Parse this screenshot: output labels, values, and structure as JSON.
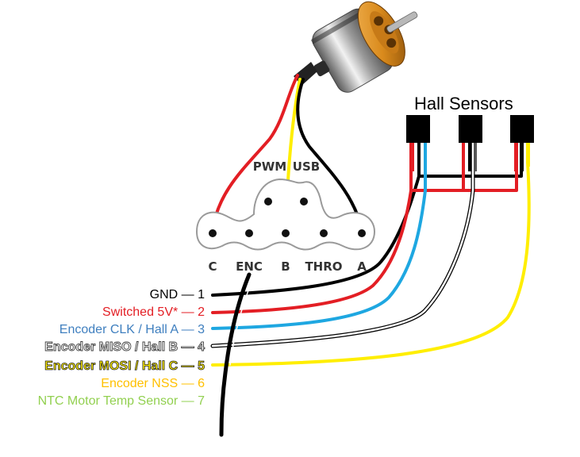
{
  "hall_sensors": {
    "title": "Hall Sensors"
  },
  "connector": {
    "pins": [
      "C",
      "ENC",
      "B",
      "THRO",
      "A"
    ],
    "top_pins": [
      "PWM",
      "USB"
    ]
  },
  "wires": [
    {
      "label": "GND — 1",
      "color": "#000000"
    },
    {
      "label": "Switched 5V* — 2",
      "color": "#e31e24"
    },
    {
      "label": "Encoder CLK / Hall A — 3",
      "color": "#3f7fbf"
    },
    {
      "label": "Encoder MISO / Hall B — 4",
      "color": "#404040"
    },
    {
      "label": "Encoder MOSI / Hall C — 5",
      "color": "#1a1a1a"
    },
    {
      "label": "Encoder NSS — 6",
      "color": "#ffc000"
    },
    {
      "label": "NTC Motor Temp Sensor — 7",
      "color": "#92d050"
    }
  ],
  "colors": {
    "red": "#e31e24",
    "blue": "#1ea7e1",
    "yellow": "#ffee00",
    "black": "#000000",
    "motor_orange": "#d98a1c"
  }
}
